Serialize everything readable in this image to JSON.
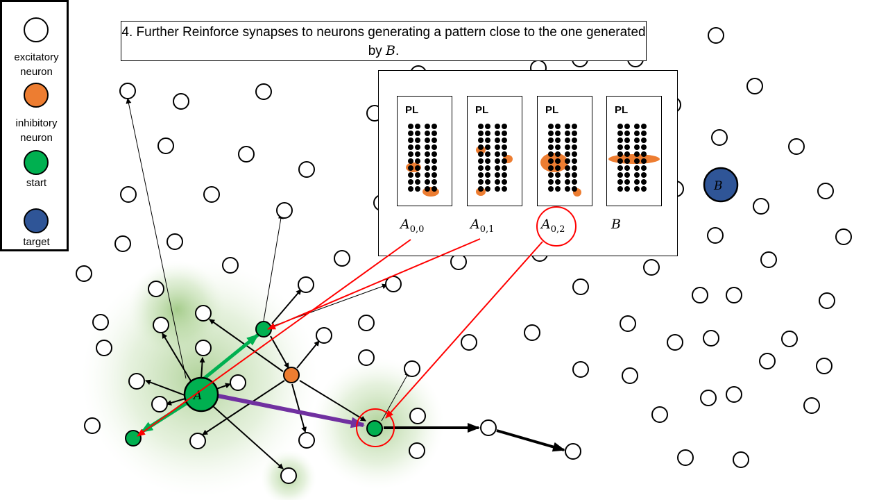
{
  "title": {
    "text_main": "4. Further Reinforce synapses to neurons generating a pattern close to the one generated by ",
    "text_var": "B",
    "text_end": "."
  },
  "legend": {
    "items": [
      {
        "label_line1": "excitatory",
        "label_line2": "neuron",
        "color": "#ffffff"
      },
      {
        "label_line1": "inhibitory",
        "label_line2": "neuron",
        "color": "#ED7D31"
      },
      {
        "label_line1": "start",
        "label_line2": "",
        "color": "#00B050"
      },
      {
        "label_line1": "target",
        "label_line2": "",
        "color": "#2F5597"
      }
    ]
  },
  "inset": {
    "panels": [
      {
        "pl_label": "PL",
        "name_base": "A",
        "name_sub": "0,0",
        "highlight": "A00"
      },
      {
        "pl_label": "PL",
        "name_base": "A",
        "name_sub": "0,1",
        "highlight": "A01"
      },
      {
        "pl_label": "PL",
        "name_base": "A",
        "name_sub": "0,2",
        "highlight": "A02"
      },
      {
        "pl_label": "PL",
        "name_base": "B",
        "name_sub": "",
        "highlight": "B"
      }
    ]
  },
  "nodes": {
    "start_label": "A",
    "target_label": "B"
  },
  "colors": {
    "excitatory": "#ffffff",
    "inhibitory": "#ED7D31",
    "start": "#00B050",
    "target": "#2F5597",
    "red_arrow": "#FF0000",
    "purple_arrow": "#7030A0",
    "green_arrow": "#00B050",
    "glow": "#70AD47"
  }
}
